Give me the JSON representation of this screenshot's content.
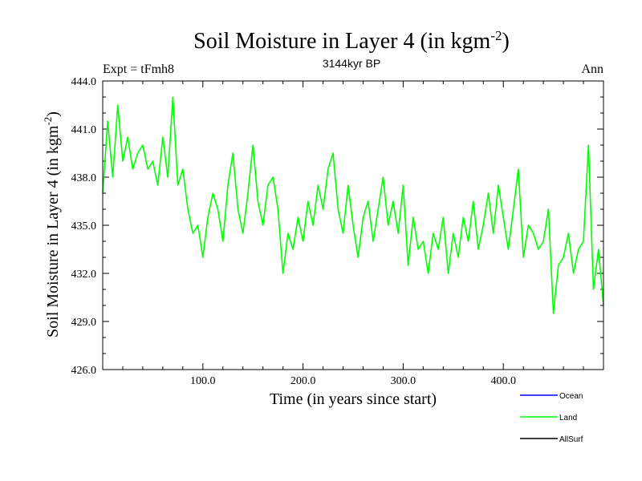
{
  "chart_data": {
    "type": "line",
    "title_main": "Soil Moisture in Layer 4 (in kgm",
    "title_sup": "-2",
    "title_close": ")",
    "subtitle_left": "Expt = tFmh8",
    "subtitle_center": "3144kyr BP",
    "subtitle_right": "Ann",
    "xlabel": "Time (in years since start)",
    "ylabel_main": "Soil Moisture in Layer 4 (in kgm",
    "ylabel_sup": "-2",
    "ylabel_close": ")",
    "xlim": [
      0,
      500
    ],
    "ylim": [
      426,
      444
    ],
    "xticks": [
      100,
      200,
      300,
      400
    ],
    "xtick_labels": [
      "100.0",
      "200.0",
      "300.0",
      "400.0"
    ],
    "yticks": [
      426,
      429,
      432,
      435,
      438,
      441,
      444
    ],
    "ytick_labels": [
      "426.0",
      "429.0",
      "432.0",
      "435.0",
      "438.0",
      "441.0",
      "444.0"
    ],
    "legend": [
      {
        "name": "Ocean",
        "color": "#0000ff"
      },
      {
        "name": "Land",
        "color": "#00ff00"
      },
      {
        "name": "AllSurf",
        "color": "#000000"
      }
    ],
    "series": [
      {
        "name": "Land",
        "color": "#00ff00",
        "x": [
          0,
          5,
          10,
          15,
          20,
          25,
          30,
          35,
          40,
          45,
          50,
          55,
          60,
          65,
          70,
          75,
          80,
          85,
          90,
          95,
          100,
          105,
          110,
          115,
          120,
          125,
          130,
          135,
          140,
          145,
          150,
          155,
          160,
          165,
          170,
          175,
          180,
          185,
          190,
          195,
          200,
          205,
          210,
          215,
          220,
          225,
          230,
          235,
          240,
          245,
          250,
          255,
          260,
          265,
          270,
          275,
          280,
          285,
          290,
          295,
          300,
          305,
          310,
          315,
          320,
          325,
          330,
          335,
          340,
          345,
          350,
          355,
          360,
          365,
          370,
          375,
          380,
          385,
          390,
          395,
          400,
          405,
          410,
          415,
          420,
          425,
          430,
          435,
          440,
          445,
          450,
          455,
          460,
          465,
          470,
          475,
          480,
          485,
          490,
          495,
          500
        ],
        "values": [
          437.0,
          441.5,
          438.0,
          442.5,
          439.0,
          440.5,
          438.5,
          439.5,
          440.0,
          438.5,
          439.0,
          437.5,
          440.5,
          438.0,
          443.0,
          437.5,
          438.5,
          436.0,
          434.5,
          435.0,
          433.0,
          435.5,
          437.0,
          436.0,
          434.0,
          437.5,
          439.5,
          436.0,
          434.5,
          437.0,
          440.0,
          436.5,
          435.0,
          437.5,
          438.0,
          436.0,
          432.0,
          434.5,
          433.5,
          435.5,
          434.0,
          436.5,
          435.0,
          437.5,
          436.0,
          438.5,
          439.5,
          436.0,
          434.5,
          437.5,
          435.0,
          433.0,
          435.5,
          436.5,
          434.0,
          436.0,
          438.0,
          435.0,
          436.5,
          434.5,
          437.5,
          432.5,
          435.5,
          433.5,
          434.0,
          432.0,
          434.5,
          433.5,
          435.5,
          432.0,
          434.5,
          433.0,
          435.5,
          434.0,
          436.5,
          433.5,
          435.0,
          437.0,
          434.5,
          437.5,
          435.5,
          433.5,
          436.0,
          438.5,
          433.0,
          435.0,
          434.5,
          433.5,
          434.0,
          436.0,
          429.5,
          432.5,
          433.0,
          434.5,
          432.0,
          433.5,
          434.0,
          440.0,
          431.0,
          433.5,
          430.0
        ]
      }
    ]
  }
}
